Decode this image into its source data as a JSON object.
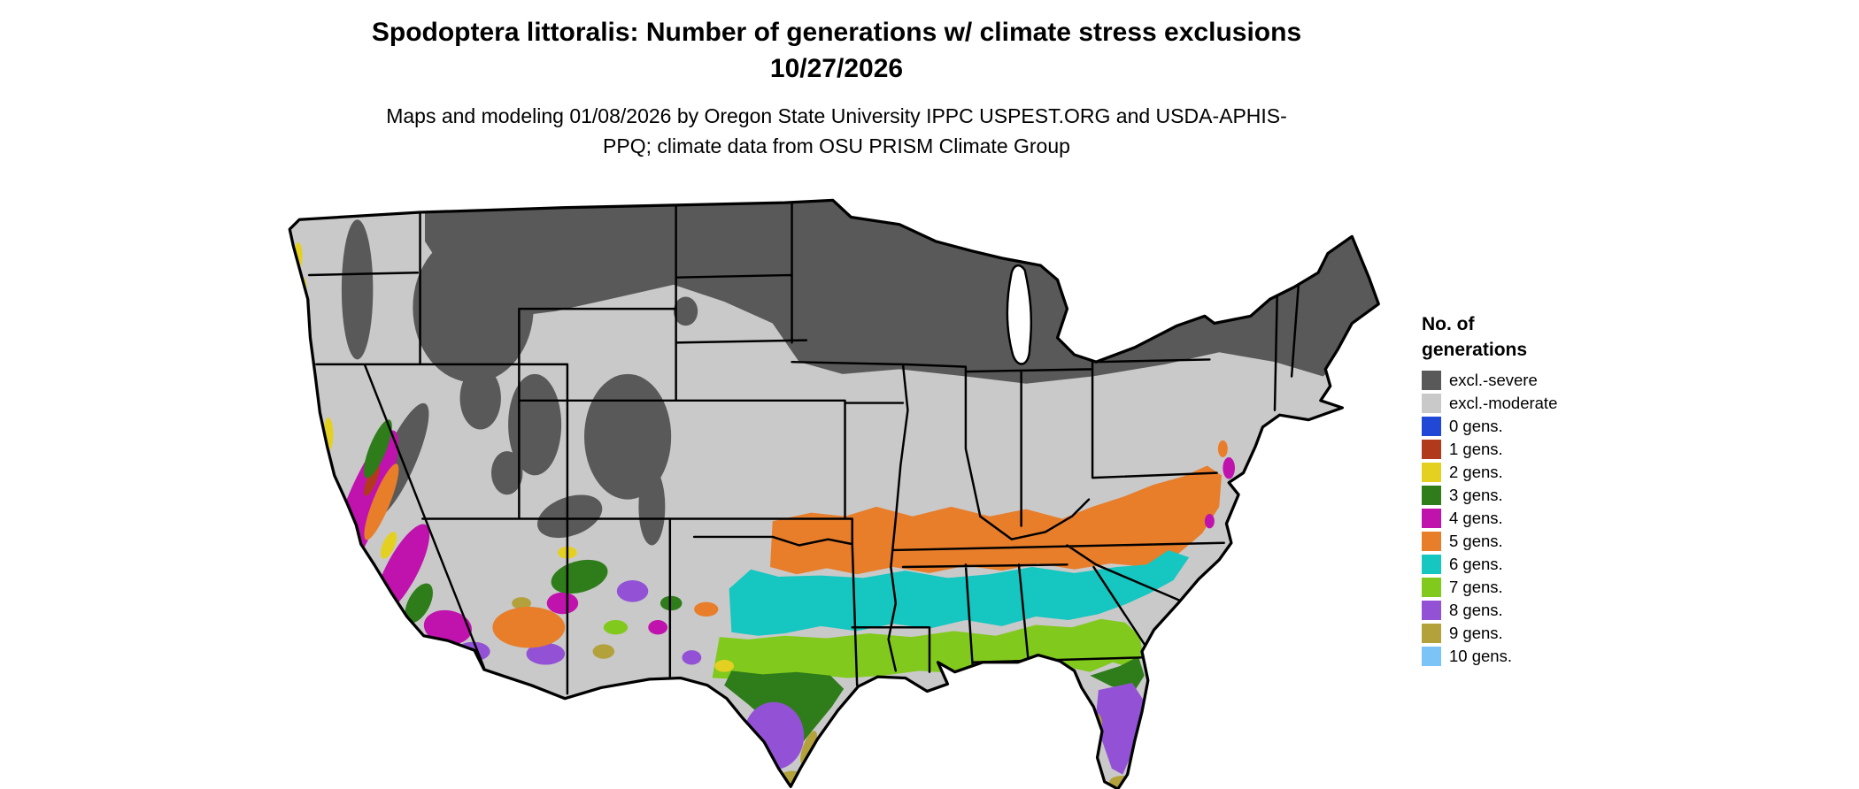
{
  "title": "Spodoptera littoralis: Number of generations w/ climate stress exclusions 10/27/2026",
  "subtitle": "Maps and modeling 01/08/2026 by Oregon State University IPPC USPEST.ORG and USDA-APHIS-PPQ; climate data from OSU PRISM Climate Group",
  "legend": {
    "title": "No. of generations",
    "items": [
      {
        "key": "severe",
        "label": "excl.-severe",
        "color": "#595959"
      },
      {
        "key": "moderate",
        "label": "excl.-moderate",
        "color": "#c9c9c9"
      },
      {
        "key": "g0",
        "label": "0 gens.",
        "color": "#2147d6"
      },
      {
        "key": "g1",
        "label": "1 gens.",
        "color": "#b23a1c"
      },
      {
        "key": "g2",
        "label": "2 gens.",
        "color": "#e4d020"
      },
      {
        "key": "g3",
        "label": "3 gens.",
        "color": "#2e7d1a"
      },
      {
        "key": "g4",
        "label": "4 gens.",
        "color": "#c013ad"
      },
      {
        "key": "g5",
        "label": "5 gens.",
        "color": "#e87d2a"
      },
      {
        "key": "g6",
        "label": "6 gens.",
        "color": "#16c6c0"
      },
      {
        "key": "g7",
        "label": "7 gens.",
        "color": "#82c91e"
      },
      {
        "key": "g8",
        "label": "8 gens.",
        "color": "#9352d6"
      },
      {
        "key": "g9",
        "label": "9 gens.",
        "color": "#b3a13c"
      },
      {
        "key": "g10",
        "label": "10 gens.",
        "color": "#7cc4f7"
      }
    ]
  }
}
